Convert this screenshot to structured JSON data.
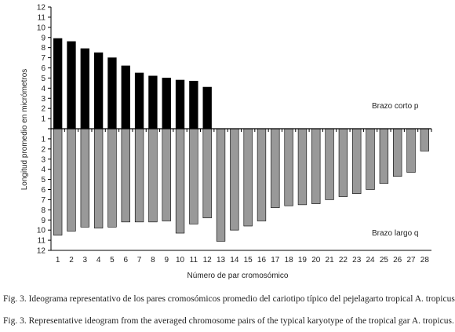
{
  "chart_data": {
    "type": "bar",
    "xlabel": "Número de par cromosómico",
    "ylabel": "Longitud promedio en micrómetros",
    "ylim": [
      -12,
      12
    ],
    "y_tick_labels": [
      "12",
      "11",
      "10",
      "9",
      "8",
      "7",
      "6",
      "5",
      "4",
      "3",
      "2",
      "1",
      "",
      "1",
      "2",
      "3",
      "4",
      "5",
      "6",
      "7",
      "8",
      "9",
      "10",
      "11",
      "12"
    ],
    "categories": [
      "1",
      "2",
      "3",
      "4",
      "5",
      "6",
      "7",
      "8",
      "9",
      "10",
      "11",
      "12",
      "13",
      "14",
      "15",
      "16",
      "17",
      "18",
      "19",
      "20",
      "21",
      "22",
      "23",
      "24",
      "25",
      "26",
      "27",
      "28"
    ],
    "series": [
      {
        "name": "Brazo corto p",
        "color": "#000000",
        "values": [
          8.9,
          8.6,
          7.9,
          7.5,
          7.0,
          6.2,
          5.5,
          5.2,
          5.0,
          4.8,
          4.7,
          4.1,
          null,
          null,
          null,
          null,
          null,
          null,
          null,
          null,
          null,
          null,
          null,
          null,
          null,
          null,
          null,
          null
        ]
      },
      {
        "name": "Brazo largo q",
        "color": "#999999",
        "values": [
          10.5,
          10.1,
          9.7,
          9.8,
          9.7,
          9.2,
          9.2,
          9.2,
          9.1,
          10.3,
          9.4,
          8.8,
          11.1,
          10.0,
          9.6,
          9.1,
          7.8,
          7.6,
          7.5,
          7.4,
          7.0,
          6.7,
          6.4,
          6.0,
          5.4,
          4.7,
          4.3,
          2.2
        ]
      }
    ],
    "grid": false,
    "annotations": [
      "Brazo corto p",
      "Brazo largo q"
    ]
  },
  "captions": {
    "fig3_es": "Fig. 3. Ideograma representativo de los pares cromosómicos promedio del cariotipo típico del pejelagarto tropical A. tropicus.",
    "fig3_en": "Fig. 3. Representative ideogram from the averaged chromosome pairs of the typical karyotype of the tropical gar A. tropicus."
  }
}
